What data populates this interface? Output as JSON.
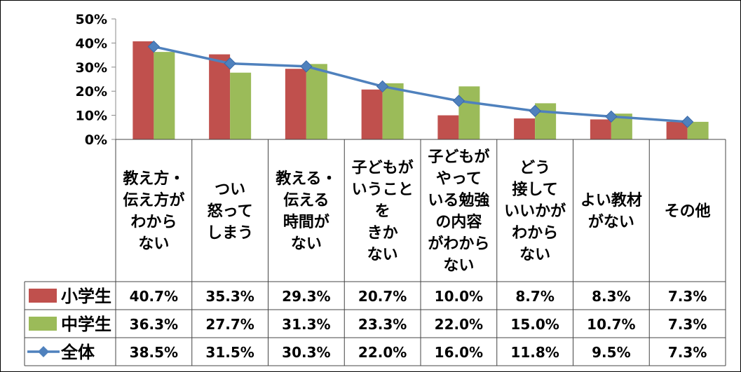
{
  "chart_data": {
    "type": "bar",
    "title": "",
    "xlabel": "",
    "ylabel": "",
    "ylim": [
      0,
      50
    ],
    "y_ticks": [
      "0%",
      "10%",
      "20%",
      "30%",
      "40%",
      "50%"
    ],
    "categories": [
      "教え方・\n伝え方が\nわから\nない",
      "つい\n怒って\nしまう",
      "教える・\n伝える\n時間が\nない",
      "子どもが\nいうこと\nを\nきか\nない",
      "子どもが\nやって\nいる勉強\nの内容\nがわから\nない",
      "どう\n接して\nいいかが\nわから\nない",
      "よい教材\nがない",
      "その他"
    ],
    "series": [
      {
        "name": "小学生",
        "type": "bar",
        "color": "#c0504d",
        "values": [
          40.7,
          35.3,
          29.3,
          20.7,
          10.0,
          8.7,
          8.3,
          7.3
        ],
        "labels": [
          "40.7%",
          "35.3%",
          "29.3%",
          "20.7%",
          "10.0%",
          "8.7%",
          "8.3%",
          "7.3%"
        ]
      },
      {
        "name": "中学生",
        "type": "bar",
        "color": "#9bbb59",
        "values": [
          36.3,
          27.7,
          31.3,
          23.3,
          22.0,
          15.0,
          10.7,
          7.3
        ],
        "labels": [
          "36.3%",
          "27.7%",
          "31.3%",
          "23.3%",
          "22.0%",
          "15.0%",
          "10.7%",
          "7.3%"
        ]
      },
      {
        "name": "全体",
        "type": "line",
        "color": "#4f81bd",
        "values": [
          38.5,
          31.5,
          30.3,
          22.0,
          16.0,
          11.8,
          9.5,
          7.3
        ],
        "labels": [
          "38.5%",
          "31.5%",
          "30.3%",
          "22.0%",
          "16.0%",
          "11.8%",
          "9.5%",
          "7.3%"
        ]
      }
    ],
    "grid": false,
    "legend": "data-table"
  }
}
